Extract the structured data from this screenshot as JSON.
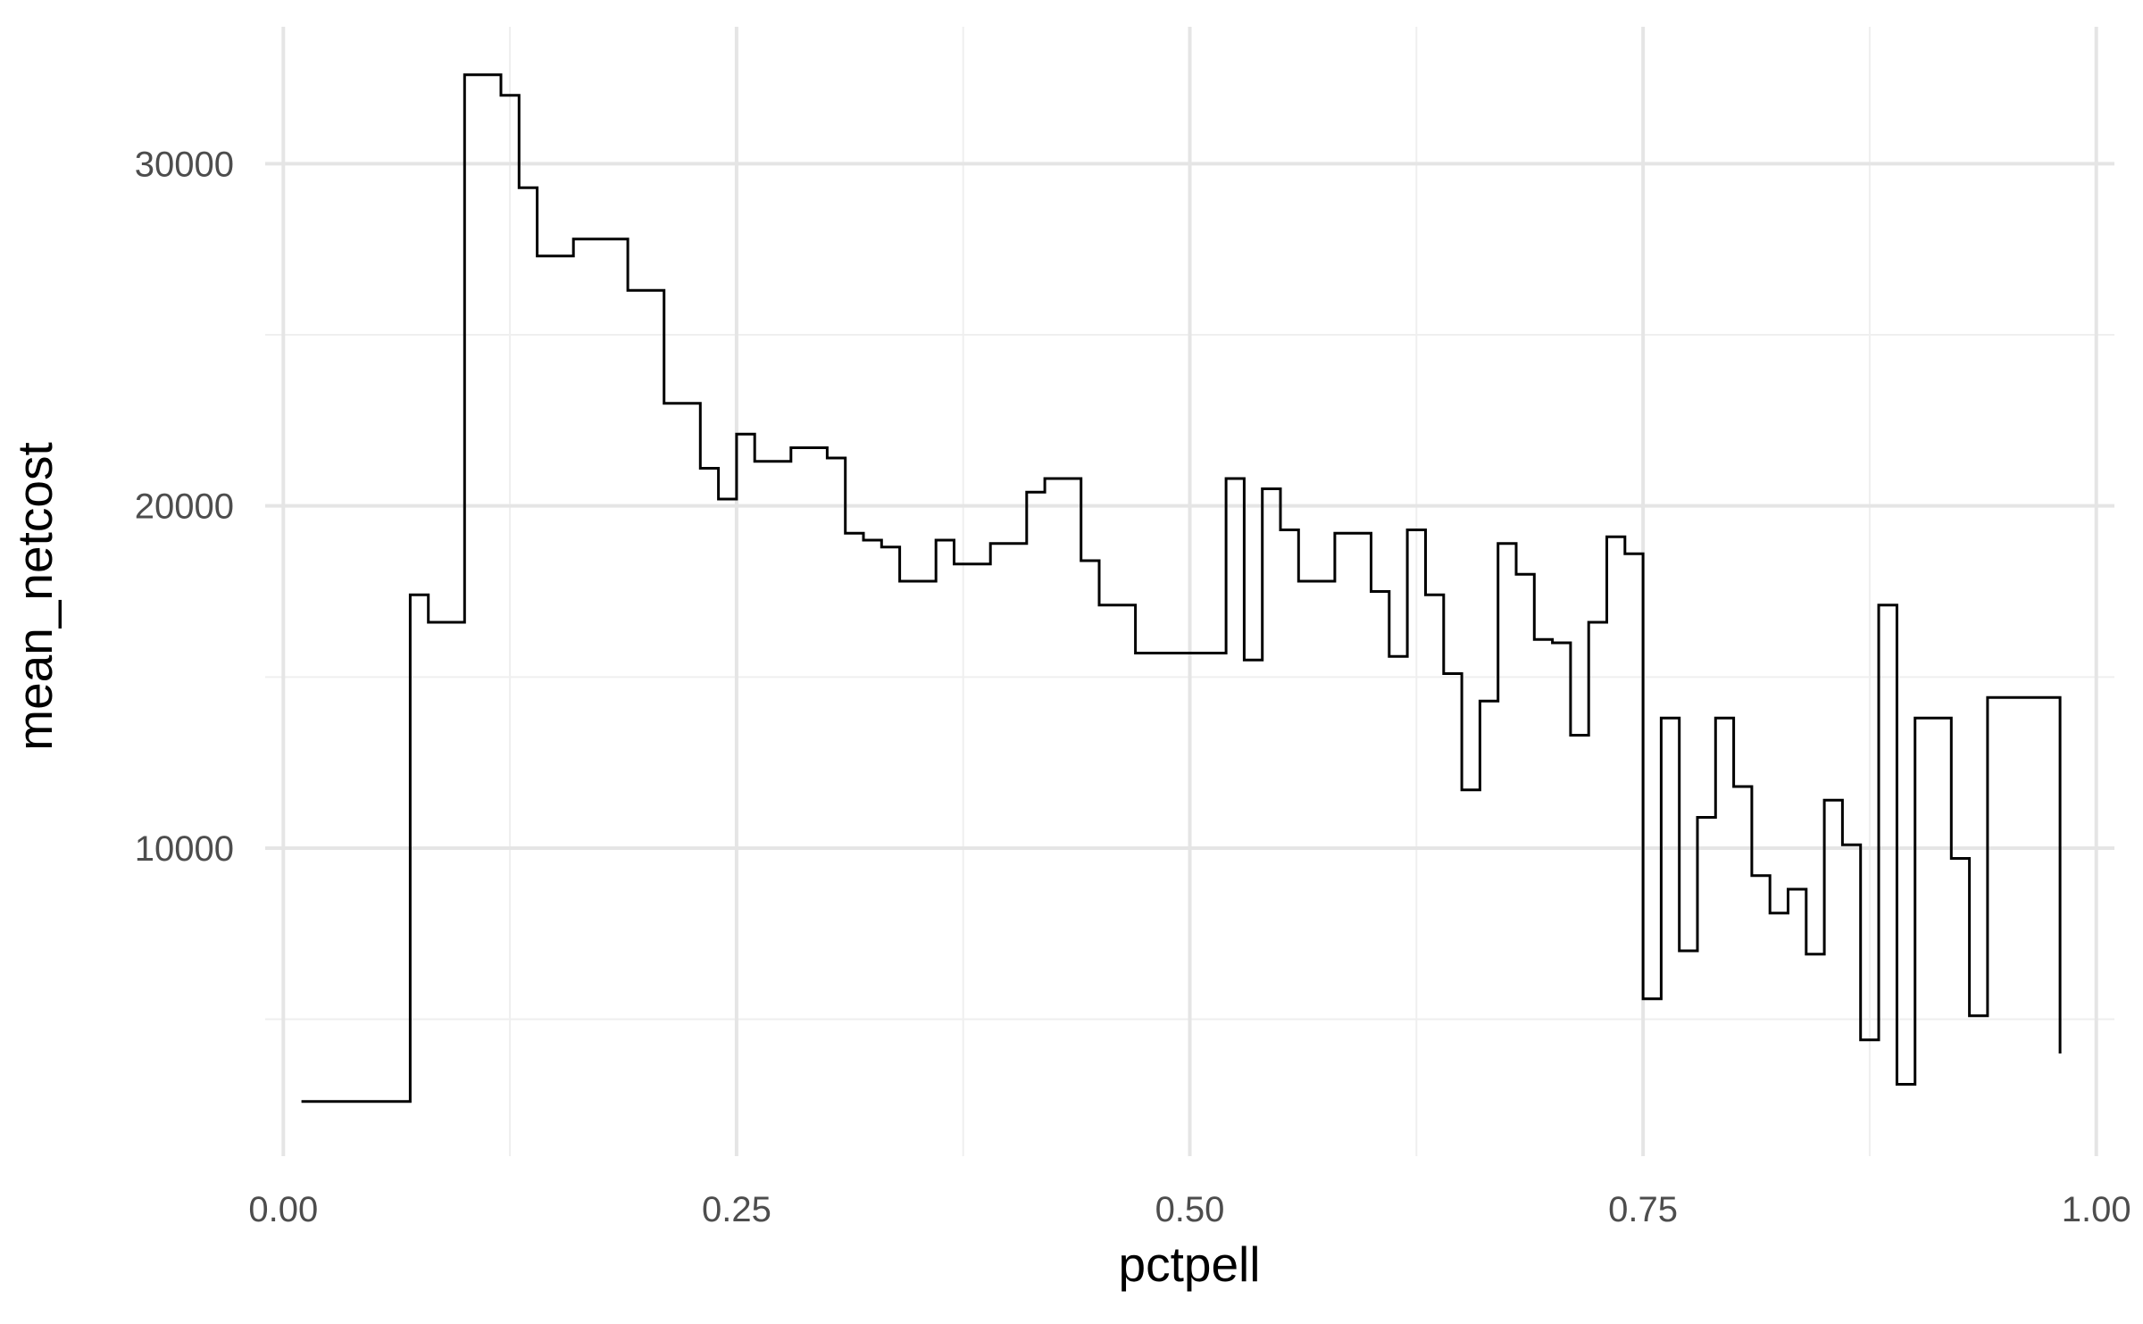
{
  "chart_data": {
    "type": "line",
    "subtype": "step",
    "title": "",
    "xlabel": "pctpell",
    "ylabel": "mean_netcost",
    "xlim": [
      -0.01,
      1.01
    ],
    "ylim": [
      1000,
      34000
    ],
    "x_ticks": [
      0.0,
      0.25,
      0.5,
      0.75,
      1.0
    ],
    "x_tick_labels": [
      "0.00",
      "0.25",
      "0.50",
      "0.75",
      "1.00"
    ],
    "x_minor_ticks": [
      0.125,
      0.375,
      0.625,
      0.875
    ],
    "y_ticks": [
      10000,
      20000,
      30000
    ],
    "y_tick_labels": [
      "10000",
      "20000",
      "30000"
    ],
    "y_minor_ticks": [
      5000,
      15000,
      25000
    ],
    "grid": true,
    "background": "#ffffff",
    "grid_major_color": "#e5e5e5",
    "grid_minor_color": "#efefef",
    "line_color": "#000000",
    "series": [
      {
        "x": [
          0.01,
          0.07,
          0.08,
          0.1,
          0.12,
          0.13,
          0.14,
          0.16,
          0.19,
          0.21,
          0.23,
          0.24,
          0.25,
          0.26,
          0.28,
          0.3,
          0.31,
          0.32,
          0.33,
          0.34,
          0.36,
          0.37,
          0.39,
          0.41,
          0.42,
          0.44,
          0.45,
          0.47,
          0.52,
          0.53,
          0.54,
          0.55,
          0.56,
          0.58,
          0.6,
          0.61,
          0.62,
          0.63,
          0.64,
          0.65,
          0.66,
          0.67,
          0.68,
          0.69,
          0.7,
          0.71,
          0.72,
          0.73,
          0.74,
          0.75,
          0.76,
          0.77,
          0.78,
          0.79,
          0.8,
          0.81,
          0.82,
          0.83,
          0.84,
          0.85,
          0.86,
          0.87,
          0.88,
          0.89,
          0.9,
          0.92,
          0.93,
          0.94,
          0.98
        ],
        "y": [
          2600,
          17400,
          16600,
          32600,
          32000,
          29300,
          27300,
          27800,
          26300,
          23000,
          21100,
          20200,
          22100,
          21300,
          21700,
          21400,
          19200,
          19000,
          18800,
          17800,
          19000,
          18300,
          18900,
          20400,
          20800,
          18400,
          17100,
          15700,
          20800,
          15500,
          20500,
          19300,
          17800,
          19200,
          17500,
          15600,
          19300,
          17400,
          15100,
          11700,
          14300,
          18900,
          18000,
          16100,
          16000,
          13300,
          16600,
          19100,
          18600,
          5600,
          13800,
          7000,
          10900,
          13800,
          11800,
          9200,
          8100,
          8800,
          6900,
          11400,
          10100,
          4400,
          17100,
          3100,
          13800,
          9700,
          5100,
          14400,
          4000
        ]
      }
    ]
  }
}
